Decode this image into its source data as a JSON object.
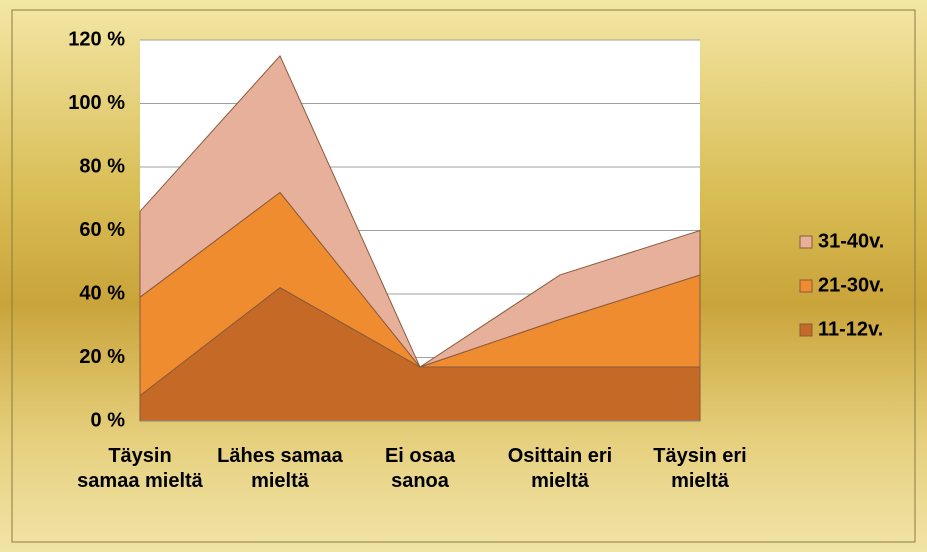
{
  "chart_data": {
    "type": "stacked_area",
    "categories": [
      "Täysin samaa mieltä",
      "Lähes samaa mieltä",
      "Ei osaa sanoa",
      "Osittain eri mieltä",
      "Täysin eri mieltä"
    ],
    "series": [
      {
        "name": "11-12v.",
        "color": "#c46a26",
        "values": [
          8,
          42,
          17,
          17,
          17
        ]
      },
      {
        "name": "21-30v.",
        "color": "#f08c30",
        "values": [
          31,
          30,
          0,
          15,
          29
        ]
      },
      {
        "name": "31-40v.",
        "color": "#e6b09a",
        "values": [
          27,
          43,
          0,
          14,
          14
        ]
      }
    ],
    "ylim": [
      0,
      120
    ],
    "yticks": [
      {
        "value": 0,
        "label": "0 %"
      },
      {
        "value": 20,
        "label": "20 %"
      },
      {
        "value": 40,
        "label": "40 %"
      },
      {
        "value": 60,
        "label": "60 %"
      },
      {
        "value": 80,
        "label": "80 %"
      },
      {
        "value": 100,
        "label": "100 %"
      },
      {
        "value": 120,
        "label": "120 %"
      }
    ],
    "grid": true,
    "legend": "right"
  }
}
